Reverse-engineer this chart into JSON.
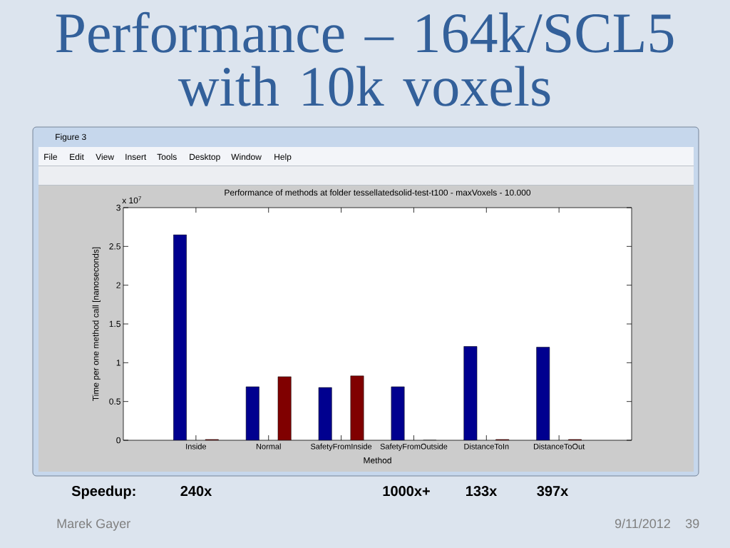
{
  "chart_data": {
    "type": "bar",
    "title": "Performance – 164k/SCL5 with 10k voxels",
    "subtitle": "Performance of methods at folder tessellatedsolid-test-t100 - maxVoxels - 10.000",
    "xlabel": "Method",
    "ylabel": "Time per one method call [nanoseconds]",
    "categories": [
      "Inside",
      "Normal",
      "SafetyFromInside",
      "SafetyFromOutside",
      "DistanceToIn",
      "DistanceToOut"
    ],
    "series": [
      {
        "color": "#00008f",
        "values": [
          2.65,
          0.69,
          0.68,
          0.69,
          1.21,
          1.2
        ]
      },
      {
        "color": "#800000",
        "values": [
          0.01,
          0.82,
          0.83,
          0,
          0.01,
          0.01
        ]
      }
    ],
    "ylim": [
      0,
      3
    ],
    "yticks": [
      0,
      0.5,
      1,
      1.5,
      2,
      2.5,
      3
    ],
    "annotations": [
      "x 10$^{7}$",
      "Figure 3",
      "File",
      "Edit",
      "View",
      "Insert",
      "Tools",
      "Desktop",
      "Window",
      "Help",
      "Speedup:",
      "240x",
      "1000x+",
      "133x",
      "397x",
      "Marek Gayer",
      "9/11/2012",
      "39"
    ]
  }
}
